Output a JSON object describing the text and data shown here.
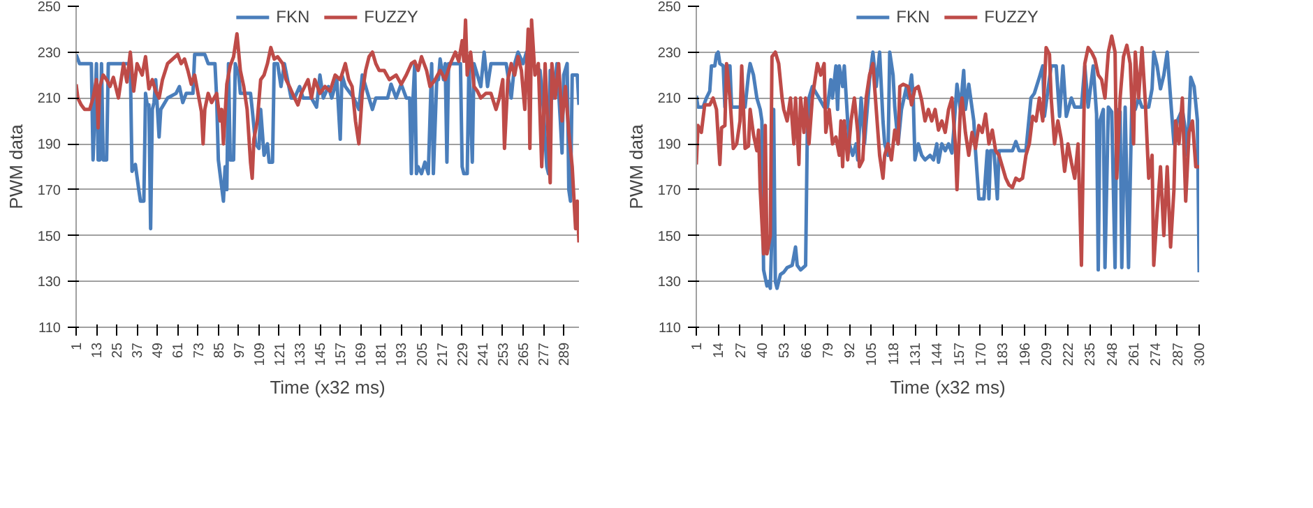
{
  "chart_data": [
    {
      "type": "line",
      "xlabel": "Time (x32 ms)",
      "ylabel": "PWM data",
      "xlim": [
        1,
        298
      ],
      "ylim": [
        110,
        250
      ],
      "xticks": [
        1,
        13,
        25,
        37,
        49,
        61,
        73,
        85,
        97,
        109,
        121,
        133,
        145,
        157,
        169,
        181,
        193,
        205,
        217,
        229,
        241,
        253,
        265,
        277,
        289
      ],
      "yticks": [
        110,
        130,
        150,
        170,
        190,
        210,
        230,
        250
      ],
      "grid": "y",
      "legend": "top",
      "marker": "none",
      "line_style": "solid",
      "series": [
        {
          "name": "FKN",
          "color": "#4a7ebb",
          "x": [
            1,
            3,
            10,
            11,
            13,
            14,
            15,
            16,
            17,
            19,
            20,
            33,
            34,
            36,
            38,
            39,
            41,
            42,
            43,
            44,
            45,
            46,
            47,
            48,
            50,
            51,
            55,
            60,
            62,
            64,
            66,
            70,
            71,
            77,
            79,
            83,
            84,
            85,
            86,
            88,
            89,
            90,
            91,
            92,
            94,
            95,
            97,
            98,
            104,
            105,
            107,
            109,
            110,
            112,
            114,
            115,
            117,
            118,
            120,
            122,
            124,
            128,
            130,
            133,
            135,
            140,
            143,
            145,
            147,
            150,
            152,
            155,
            157,
            158,
            160,
            165,
            168,
            170,
            174,
            176,
            178,
            185,
            187,
            190,
            193,
            196,
            198,
            199,
            200,
            201,
            202,
            203,
            205,
            207,
            209,
            211,
            212,
            214,
            215,
            216,
            218,
            219,
            220,
            221,
            228,
            229,
            230,
            232,
            233,
            235,
            236,
            240,
            242,
            244,
            246,
            255,
            258,
            260,
            262,
            265,
            267,
            270,
            275,
            277,
            279,
            280,
            281,
            283,
            285,
            287,
            288,
            289,
            291,
            292,
            293,
            294,
            297,
            298
          ],
          "values": [
            229,
            225,
            225,
            183,
            225,
            183,
            183,
            225,
            183,
            183,
            225,
            225,
            178,
            181,
            170,
            165,
            165,
            212,
            207,
            207,
            153,
            205,
            208,
            218,
            193,
            205,
            210,
            212,
            215,
            208,
            212,
            212,
            229,
            229,
            225,
            225,
            210,
            183,
            177,
            165,
            180,
            170,
            225,
            183,
            183,
            225,
            220,
            212,
            212,
            205,
            190,
            188,
            205,
            185,
            190,
            182,
            182,
            225,
            225,
            215,
            225,
            210,
            210,
            215,
            210,
            210,
            206,
            220,
            210,
            215,
            210,
            218,
            192,
            220,
            215,
            210,
            205,
            220,
            210,
            205,
            210,
            210,
            216,
            210,
            216,
            210,
            210,
            177,
            210,
            225,
            177,
            180,
            177,
            182,
            177,
            225,
            177,
            218,
            218,
            227,
            218,
            225,
            182,
            225,
            225,
            180,
            177,
            177,
            225,
            182,
            225,
            215,
            230,
            215,
            225,
            225,
            210,
            225,
            230,
            225,
            230,
            225,
            222,
            205,
            180,
            177,
            222,
            210,
            225,
            200,
            186,
            220,
            225,
            170,
            165,
            220,
            220,
            207
          ]
        },
        {
          "name": "FUZZY",
          "color": "#be4b48",
          "x": [
            1,
            2,
            4,
            6,
            9,
            11,
            13,
            14,
            15,
            17,
            19,
            21,
            23,
            25,
            26,
            27,
            29,
            31,
            33,
            35,
            37,
            40,
            42,
            44,
            46,
            48,
            50,
            52,
            55,
            58,
            61,
            63,
            65,
            67,
            69,
            71,
            73,
            75,
            76,
            77,
            79,
            81,
            84,
            86,
            87,
            88,
            90,
            92,
            94,
            96,
            98,
            100,
            102,
            104,
            105,
            106,
            108,
            110,
            112,
            114,
            116,
            118,
            120,
            123,
            125,
            127,
            130,
            132,
            134,
            136,
            138,
            140,
            142,
            145,
            148,
            151,
            154,
            157,
            160,
            162,
            164,
            166,
            168,
            170,
            172,
            174,
            176,
            178,
            180,
            183,
            186,
            190,
            193,
            196,
            199,
            201,
            203,
            205,
            208,
            210,
            213,
            216,
            219,
            222,
            225,
            227,
            229,
            230,
            231,
            232,
            234,
            236,
            238,
            240,
            243,
            246,
            249,
            251,
            253,
            254,
            256,
            258,
            260,
            262,
            264,
            266,
            268,
            269,
            270,
            272,
            274,
            276,
            277,
            278,
            280,
            281,
            282,
            284,
            286,
            288,
            290,
            292,
            294,
            296,
            297,
            298
          ],
          "values": [
            216,
            210,
            207,
            205,
            205,
            210,
            218,
            197,
            215,
            220,
            218,
            215,
            219,
            213,
            210,
            215,
            225,
            217,
            230,
            213,
            225,
            220,
            228,
            214,
            218,
            213,
            210,
            218,
            225,
            227,
            229,
            225,
            227,
            222,
            216,
            220,
            212,
            204,
            190,
            205,
            212,
            208,
            212,
            200,
            205,
            190,
            216,
            224,
            228,
            238,
            222,
            215,
            205,
            182,
            175,
            192,
            200,
            218,
            220,
            225,
            232,
            227,
            228,
            225,
            218,
            215,
            210,
            207,
            212,
            215,
            218,
            210,
            218,
            212,
            215,
            213,
            220,
            218,
            225,
            218,
            215,
            200,
            190,
            212,
            222,
            228,
            230,
            225,
            222,
            222,
            218,
            220,
            216,
            220,
            225,
            226,
            222,
            228,
            222,
            215,
            218,
            222,
            218,
            225,
            230,
            226,
            235,
            226,
            244,
            220,
            230,
            215,
            213,
            210,
            212,
            212,
            205,
            210,
            218,
            188,
            218,
            225,
            220,
            228,
            222,
            205,
            240,
            188,
            244,
            220,
            225,
            180,
            200,
            225,
            190,
            173,
            225,
            210,
            225,
            200,
            215,
            195,
            180,
            153,
            165,
            147
          ]
        }
      ]
    },
    {
      "type": "line",
      "xlabel": "Time (x32 ms)",
      "ylabel": "PWM data",
      "xlim": [
        1,
        300
      ],
      "ylim": [
        110,
        250
      ],
      "xticks": [
        1,
        14,
        27,
        40,
        53,
        66,
        79,
        92,
        105,
        118,
        131,
        144,
        157,
        170,
        183,
        196,
        209,
        222,
        235,
        248,
        261,
        274,
        287,
        300
      ],
      "yticks": [
        110,
        130,
        150,
        170,
        190,
        210,
        230,
        250
      ],
      "grid": "y",
      "legend": "top",
      "marker": "none",
      "line_style": "solid",
      "series": [
        {
          "name": "FKN",
          "color": "#4a7ebb",
          "x": [
            1,
            2,
            5,
            7,
            9,
            10,
            12,
            13,
            14,
            15,
            17,
            18,
            19,
            21,
            22,
            30,
            32,
            33,
            35,
            37,
            39,
            40,
            41,
            43,
            44,
            45,
            46,
            47,
            48,
            49,
            51,
            53,
            55,
            58,
            60,
            61,
            63,
            66,
            67,
            68,
            70,
            74,
            77,
            79,
            81,
            82,
            84,
            85,
            86,
            88,
            89,
            91,
            92,
            94,
            96,
            97,
            99,
            101,
            104,
            106,
            108,
            110,
            112,
            113,
            115,
            116,
            118,
            119,
            121,
            123,
            126,
            127,
            129,
            130,
            131,
            133,
            135,
            137,
            140,
            142,
            144,
            145,
            147,
            149,
            151,
            153,
            154,
            156,
            158,
            160,
            161,
            163,
            166,
            167,
            169,
            172,
            174,
            175,
            176,
            178,
            180,
            181,
            185,
            189,
            191,
            193,
            197,
            200,
            202,
            205,
            207,
            208,
            212,
            215,
            217,
            219,
            221,
            224,
            226,
            230,
            232,
            234,
            237,
            239,
            240,
            241,
            243,
            244,
            246,
            248,
            250,
            251,
            253,
            254,
            256,
            258,
            260,
            262,
            264,
            266,
            270,
            272,
            273,
            275,
            277,
            279,
            281,
            283,
            285,
            287,
            290,
            292,
            293,
            295,
            297,
            299,
            300
          ],
          "values": [
            211,
            206,
            206,
            210,
            213,
            224,
            224,
            229,
            230,
            225,
            224,
            206,
            224,
            224,
            206,
            206,
            220,
            225,
            220,
            210,
            205,
            200,
            135,
            128,
            130,
            127,
            153,
            205,
            130,
            127,
            133,
            134,
            136,
            137,
            145,
            137,
            135,
            137,
            195,
            210,
            215,
            210,
            206,
            206,
            218,
            210,
            224,
            205,
            224,
            215,
            224,
            200,
            190,
            185,
            190,
            183,
            210,
            190,
            218,
            230,
            215,
            230,
            200,
            190,
            185,
            230,
            220,
            206,
            190,
            205,
            215,
            210,
            220,
            210,
            183,
            190,
            185,
            183,
            185,
            183,
            190,
            182,
            190,
            187,
            190,
            186,
            195,
            216,
            205,
            222,
            205,
            216,
            200,
            187,
            166,
            166,
            187,
            166,
            187,
            187,
            166,
            187,
            187,
            187,
            191,
            187,
            187,
            210,
            212,
            219,
            224,
            202,
            224,
            224,
            202,
            224,
            202,
            210,
            206,
            206,
            224,
            206,
            224,
            203,
            135,
            200,
            205,
            136,
            206,
            204,
            136,
            205,
            204,
            136,
            206,
            136,
            210,
            205,
            210,
            206,
            206,
            214,
            230,
            224,
            214,
            220,
            230,
            210,
            190,
            200,
            205,
            195,
            185,
            219,
            215,
            200,
            134
          ]
        },
        {
          "name": "FUZZY",
          "color": "#be4b48",
          "x": [
            1,
            2,
            4,
            6,
            9,
            11,
            13,
            15,
            16,
            18,
            19,
            21,
            23,
            25,
            27,
            28,
            30,
            32,
            33,
            35,
            37,
            38,
            39,
            41,
            42,
            43,
            45,
            46,
            48,
            50,
            52,
            53,
            55,
            57,
            59,
            60,
            62,
            63,
            65,
            66,
            68,
            70,
            72,
            73,
            75,
            77,
            78,
            80,
            82,
            84,
            86,
            87,
            88,
            89,
            91,
            93,
            95,
            97,
            98,
            100,
            102,
            104,
            106,
            108,
            110,
            112,
            113,
            115,
            117,
            119,
            121,
            122,
            124,
            127,
            129,
            131,
            133,
            135,
            137,
            139,
            141,
            143,
            145,
            147,
            149,
            151,
            153,
            155,
            156,
            158,
            159,
            161,
            163,
            165,
            167,
            169,
            171,
            173,
            175,
            177,
            179,
            181,
            183,
            185,
            187,
            189,
            191,
            193,
            195,
            197,
            199,
            201,
            203,
            205,
            207,
            209,
            211,
            212,
            214,
            216,
            218,
            220,
            222,
            224,
            226,
            228,
            229,
            230,
            232,
            234,
            236,
            238,
            240,
            242,
            244,
            246,
            248,
            250,
            251,
            253,
            255,
            257,
            259,
            261,
            262,
            264,
            266,
            268,
            270,
            272,
            273,
            275,
            277,
            279,
            281,
            283,
            285,
            286,
            288,
            290,
            292,
            294,
            296,
            298,
            300
          ],
          "values": [
            181,
            198,
            195,
            207,
            207,
            210,
            205,
            181,
            197,
            198,
            225,
            210,
            188,
            190,
            200,
            224,
            188,
            189,
            205,
            194,
            187,
            196,
            170,
            142,
            198,
            142,
            150,
            228,
            230,
            225,
            210,
            205,
            200,
            210,
            190,
            210,
            181,
            210,
            195,
            210,
            190,
            210,
            220,
            225,
            220,
            225,
            195,
            205,
            190,
            193,
            185,
            200,
            180,
            200,
            183,
            200,
            210,
            195,
            180,
            183,
            210,
            220,
            225,
            205,
            185,
            175,
            185,
            190,
            183,
            196,
            190,
            215,
            216,
            215,
            207,
            214,
            215,
            209,
            200,
            205,
            200,
            205,
            196,
            200,
            195,
            205,
            210,
            190,
            170,
            205,
            210,
            195,
            185,
            195,
            188,
            198,
            195,
            203,
            190,
            196,
            187,
            185,
            180,
            175,
            172,
            171,
            175,
            174,
            175,
            185,
            190,
            202,
            200,
            210,
            200,
            232,
            229,
            210,
            190,
            200,
            192,
            178,
            190,
            182,
            175,
            190,
            165,
            137,
            225,
            232,
            230,
            227,
            220,
            218,
            210,
            230,
            237,
            230,
            175,
            210,
            228,
            233,
            225,
            190,
            230,
            210,
            232,
            208,
            175,
            185,
            137,
            160,
            180,
            150,
            180,
            145,
            170,
            200,
            190,
            210,
            165,
            195,
            200,
            180,
            180
          ]
        }
      ]
    }
  ]
}
